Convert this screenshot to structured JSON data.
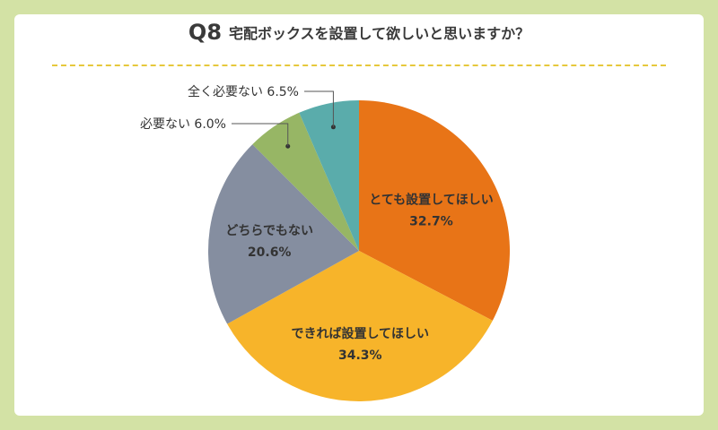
{
  "header": {
    "question_number": "Q8",
    "question_text": "宅配ボックスを設置して欲しいと思いますか？"
  },
  "colors": {
    "background": "#d3e2a5",
    "card": "#ffffff",
    "divider": "#e6c83c"
  },
  "chart_data": {
    "type": "pie",
    "start": "12 o'clock",
    "direction": "clockwise",
    "slices": [
      {
        "label": "とても設置してほしい",
        "value": 32.7,
        "value_label": "32.7%",
        "color": "#e87417",
        "label_position": "inside"
      },
      {
        "label": "できれば設置してほしい",
        "value": 34.3,
        "value_label": "34.3%",
        "color": "#f7b42a",
        "label_position": "inside"
      },
      {
        "label": "どちらでもない",
        "value": 20.6,
        "value_label": "20.6%",
        "color": "#858ea0",
        "label_position": "inside"
      },
      {
        "label": "必要ない",
        "value": 6.0,
        "value_label": "6.0%",
        "color": "#97b665",
        "label_position": "outside"
      },
      {
        "label": "全く必要ない",
        "value": 6.5,
        "value_label": "6.5%",
        "color": "#5aacab",
        "label_position": "outside"
      }
    ]
  }
}
